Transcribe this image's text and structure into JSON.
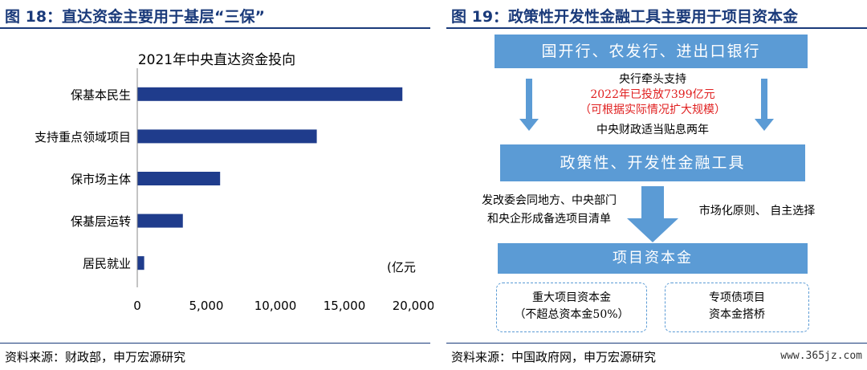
{
  "left": {
    "figure_title": "图 18：直达资金主要用于基层“三保”",
    "source": "资料来源：财政部，申万宏源研究"
  },
  "chart_data": {
    "type": "bar",
    "orientation": "horizontal",
    "title": "2021年中央直达资金投向",
    "unit": "(亿元",
    "categories": [
      "保基本民生",
      "支持重点领域项目",
      "保市场主体",
      "保基层运转",
      "居民就业"
    ],
    "values": [
      19200,
      13000,
      6000,
      3300,
      500
    ],
    "xlim": [
      0,
      20000
    ],
    "xticks": [
      0,
      5000,
      10000,
      15000,
      20000
    ],
    "xtick_labels": [
      "0",
      "5,000",
      "10,000",
      "15,000",
      "20,000"
    ],
    "bar_color": "#1f3c8c",
    "grid": false
  },
  "right": {
    "figure_title": "图 19：政策性开发性金融工具主要用于项目资本金",
    "source": "资料来源：中国政府网，申万宏源研究",
    "watermark": "www.365jz.com",
    "flow": {
      "box1": "国开行、农发行、进出口银行",
      "mid_line1": "央行牵头支持",
      "mid_line2": "2022年已投放7399亿元",
      "mid_line3": "（可根据实际情况扩大规模）",
      "mid_line4": "中央财政适当贴息两年",
      "box2": "政策性、开发性金融工具",
      "left_line1": "发改委会同地方、中央部门",
      "left_line2": "和央企形成备选项目清单",
      "right_text": "市场化原则、 自主选择",
      "box3": "项目资本金",
      "dash1_line1": "重大项目资本金",
      "dash1_line2": "（不超总资本金50%）",
      "dash2_line1": "专项债项目",
      "dash2_line2": "资本金搭桥",
      "accent_color": "#5b9bd5",
      "red_text_color": "#e02020"
    }
  }
}
